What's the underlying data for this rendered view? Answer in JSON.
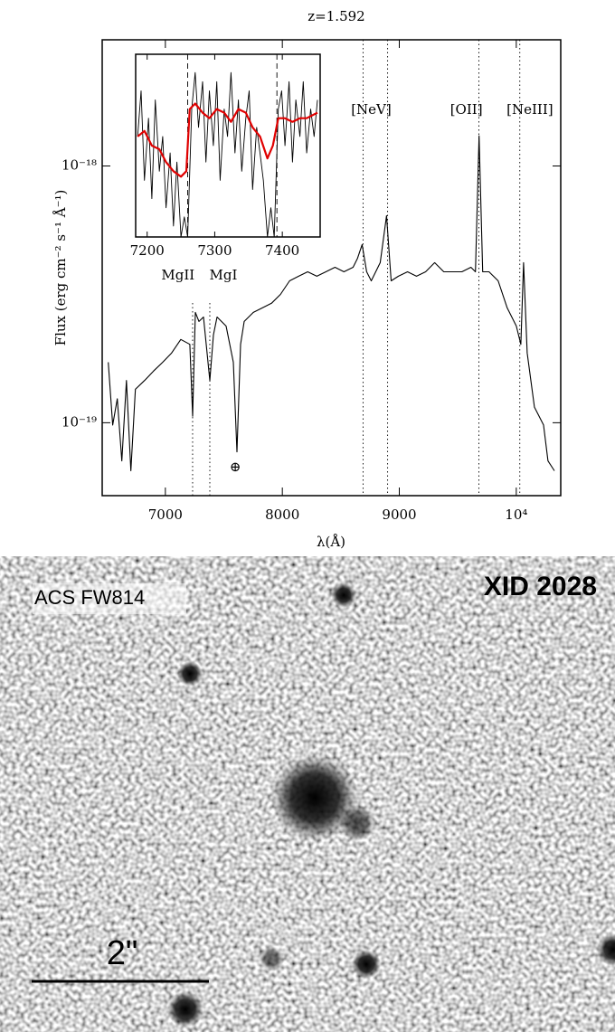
{
  "chart_data": [
    {
      "type": "line",
      "title": "z=1.592",
      "xlabel": "λ(Å)",
      "ylabel": "Flux (erg cm⁻² s⁻¹ Å⁻¹)",
      "color": "#000000",
      "yscale": "log",
      "xlim": [
        6460,
        10380
      ],
      "ylim": [
        5.2e-20,
        3.1e-18
      ],
      "xticks": [
        7000,
        8000,
        9000,
        {
          "value": 10000,
          "label": "10⁴"
        }
      ],
      "yticks": [
        {
          "value": 1e-19,
          "label": "10⁻¹⁹"
        },
        {
          "value": 1e-18,
          "label": "10⁻¹⁸"
        }
      ],
      "lines": [
        7233,
        7380,
        8690,
        8900,
        9680,
        10030
      ],
      "annotations": [
        {
          "text": "MgII",
          "x": 7108
        },
        {
          "text": "MgI",
          "x": 7496
        },
        {
          "text": "[NeV]",
          "x": 8760
        },
        {
          "text": "[OII]",
          "x": 9573
        },
        {
          "text": "[NeIII]",
          "x": 10116
        },
        {
          "text": "⊕",
          "x": 7597
        }
      ],
      "x": [
        6512,
        6550,
        6589,
        6628,
        6667,
        6705,
        6744,
        6822,
        6899,
        6977,
        7054,
        7132,
        7209,
        7233,
        7256,
        7287,
        7326,
        7380,
        7411,
        7442,
        7519,
        7581,
        7612,
        7643,
        7674,
        7752,
        7829,
        7907,
        7984,
        8062,
        8139,
        8217,
        8295,
        8372,
        8450,
        8527,
        8605,
        8643,
        8682,
        8721,
        8760,
        8837,
        8891,
        8930,
        8992,
        9070,
        9147,
        9225,
        9302,
        9380,
        9457,
        9535,
        9612,
        9651,
        9682,
        9713,
        9767,
        9845,
        9922,
        10000,
        10039,
        10062,
        10093,
        10155,
        10233,
        10271,
        10326
      ],
      "values": [
        1.72e-19,
        9.8e-20,
        1.24e-19,
        7.1e-20,
        1.46e-19,
        6.5e-20,
        1.35e-19,
        1.46e-19,
        1.59e-19,
        1.72e-19,
        1.87e-19,
        2.11e-19,
        2.02e-19,
        1.06e-19,
        2.69e-19,
        2.48e-19,
        2.58e-19,
        1.46e-19,
        2.2e-19,
        2.58e-19,
        2.38e-19,
        1.72e-19,
        7.7e-20,
        2.02e-19,
        2.48e-19,
        2.69e-19,
        2.8e-19,
        2.92e-19,
        3.16e-19,
        3.57e-19,
        3.72e-19,
        3.87e-19,
        3.72e-19,
        3.87e-19,
        4.03e-19,
        3.87e-19,
        4.03e-19,
        4.37e-19,
        4.94e-19,
        3.87e-19,
        3.57e-19,
        4.2e-19,
        6.4e-19,
        3.57e-19,
        3.72e-19,
        3.87e-19,
        3.72e-19,
        3.87e-19,
        4.2e-19,
        3.87e-19,
        3.87e-19,
        3.87e-19,
        4.03e-19,
        3.87e-19,
        1.31e-18,
        3.87e-19,
        3.87e-19,
        3.57e-19,
        2.8e-19,
        2.38e-19,
        2.02e-19,
        4.2e-19,
        1.87e-19,
        1.15e-19,
        9.8e-20,
        7.1e-20,
        6.5e-20
      ]
    },
    {
      "type": "line",
      "xlim": [
        7183,
        7456
      ],
      "ylim": [
        0,
        1
      ],
      "xticks": [
        7200,
        7300,
        7400
      ],
      "lines": [
        7260,
        7392
      ],
      "series": [
        {
          "color": "#000000",
          "x": [
            7186,
            7191,
            7196,
            7202,
            7207,
            7212,
            7218,
            7223,
            7228,
            7234,
            7239,
            7244,
            7250,
            7255,
            7260,
            7266,
            7271,
            7276,
            7282,
            7287,
            7292,
            7298,
            7303,
            7308,
            7314,
            7319,
            7324,
            7330,
            7335,
            7340,
            7346,
            7351,
            7356,
            7362,
            7367,
            7372,
            7378,
            7383,
            7388,
            7394,
            7399,
            7404,
            7410,
            7415,
            7420,
            7426,
            7431,
            7436,
            7442,
            7447,
            7452
          ],
          "values": [
            0.55,
            0.8,
            0.31,
            0.65,
            0.21,
            0.75,
            0.36,
            0.55,
            0.16,
            0.46,
            0.06,
            0.41,
            0,
            0.11,
            0,
            0.7,
            0.9,
            0.6,
            0.85,
            0.41,
            0.8,
            0.5,
            0.85,
            0.31,
            0.7,
            0.55,
            0.9,
            0.46,
            0.75,
            0.36,
            0.65,
            0.8,
            0.26,
            0.6,
            0.46,
            0.31,
            0,
            0.16,
            0,
            0.7,
            0.8,
            0.5,
            0.85,
            0.41,
            0.75,
            0.55,
            0.85,
            0.46,
            0.7,
            0.55,
            0.75
          ]
        },
        {
          "color": "#e00000",
          "x": [
            7186,
            7196,
            7207,
            7218,
            7228,
            7239,
            7250,
            7258,
            7263,
            7271,
            7282,
            7292,
            7303,
            7314,
            7324,
            7335,
            7346,
            7356,
            7367,
            7378,
            7386,
            7394,
            7404,
            7415,
            7426,
            7436,
            7452
          ],
          "values": [
            0.55,
            0.58,
            0.5,
            0.48,
            0.41,
            0.36,
            0.33,
            0.36,
            0.7,
            0.73,
            0.68,
            0.65,
            0.7,
            0.68,
            0.63,
            0.7,
            0.68,
            0.6,
            0.55,
            0.43,
            0.5,
            0.65,
            0.65,
            0.63,
            0.65,
            0.65,
            0.68
          ]
        }
      ]
    }
  ],
  "image": {
    "band": "ACS FW814",
    "source": "XID 2028",
    "scale": "2\""
  }
}
